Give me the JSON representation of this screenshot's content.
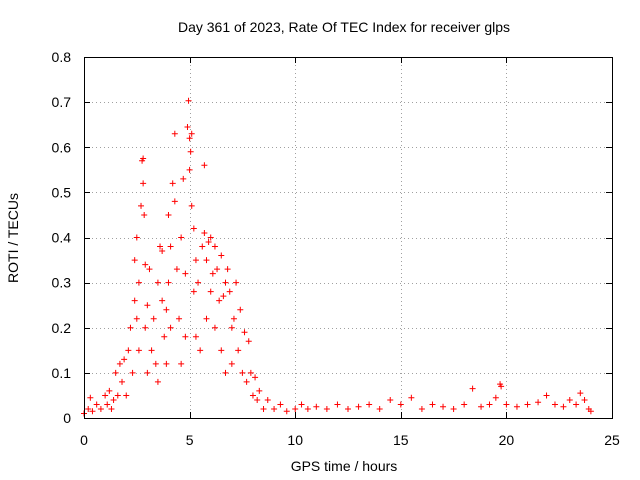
{
  "chart_data": {
    "type": "scatter",
    "title": "Day 361 of 2023, Rate Of TEC Index for receiver glps",
    "xlabel": "GPS time / hours",
    "ylabel": "ROTI / TECUs",
    "xlim": [
      0,
      25
    ],
    "ylim": [
      0,
      0.8
    ],
    "xticks": [
      0,
      5,
      10,
      15,
      20,
      25
    ],
    "xtick_labels": [
      "0",
      "5",
      "10",
      "15",
      "20",
      "25"
    ],
    "yticks": [
      0,
      0.1,
      0.2,
      0.3,
      0.4,
      0.5,
      0.6,
      0.7,
      0.8
    ],
    "ytick_labels": [
      "0",
      "0.1",
      "0.2",
      "0.3",
      "0.4",
      "0.5",
      "0.6",
      "0.7",
      "0.8"
    ],
    "grid": true,
    "marker": "+",
    "color": "#ff0000",
    "series": [
      {
        "points": [
          [
            0.0,
            0.01
          ],
          [
            0.2,
            0.02
          ],
          [
            0.3,
            0.045
          ],
          [
            0.4,
            0.015
          ],
          [
            0.6,
            0.03
          ],
          [
            0.8,
            0.02
          ],
          [
            1.0,
            0.05
          ],
          [
            1.1,
            0.03
          ],
          [
            1.2,
            0.06
          ],
          [
            1.3,
            0.02
          ],
          [
            1.4,
            0.04
          ],
          [
            1.5,
            0.1
          ],
          [
            1.6,
            0.05
          ],
          [
            1.7,
            0.12
          ],
          [
            1.8,
            0.08
          ],
          [
            1.9,
            0.13
          ],
          [
            2.0,
            0.05
          ],
          [
            2.1,
            0.15
          ],
          [
            2.2,
            0.2
          ],
          [
            2.3,
            0.1
          ],
          [
            2.4,
            0.26
          ],
          [
            2.4,
            0.35
          ],
          [
            2.5,
            0.4
          ],
          [
            2.5,
            0.22
          ],
          [
            2.6,
            0.3
          ],
          [
            2.6,
            0.15
          ],
          [
            2.7,
            0.47
          ],
          [
            2.75,
            0.57
          ],
          [
            2.8,
            0.575
          ],
          [
            2.8,
            0.52
          ],
          [
            2.85,
            0.45
          ],
          [
            2.9,
            0.34
          ],
          [
            2.9,
            0.2
          ],
          [
            3.0,
            0.25
          ],
          [
            3.0,
            0.1
          ],
          [
            3.1,
            0.33
          ],
          [
            3.2,
            0.15
          ],
          [
            3.3,
            0.22
          ],
          [
            3.4,
            0.12
          ],
          [
            3.5,
            0.3
          ],
          [
            3.5,
            0.08
          ],
          [
            3.6,
            0.38
          ],
          [
            3.7,
            0.37
          ],
          [
            3.7,
            0.26
          ],
          [
            3.8,
            0.18
          ],
          [
            3.9,
            0.24
          ],
          [
            3.9,
            0.12
          ],
          [
            4.0,
            0.45
          ],
          [
            4.0,
            0.3
          ],
          [
            4.1,
            0.38
          ],
          [
            4.1,
            0.2
          ],
          [
            4.2,
            0.52
          ],
          [
            4.3,
            0.63
          ],
          [
            4.3,
            0.48
          ],
          [
            4.4,
            0.33
          ],
          [
            4.5,
            0.22
          ],
          [
            4.6,
            0.4
          ],
          [
            4.6,
            0.12
          ],
          [
            4.7,
            0.53
          ],
          [
            4.8,
            0.32
          ],
          [
            4.8,
            0.18
          ],
          [
            4.9,
            0.645
          ],
          [
            4.95,
            0.703
          ],
          [
            5.0,
            0.62
          ],
          [
            5.0,
            0.55
          ],
          [
            5.05,
            0.59
          ],
          [
            5.1,
            0.63
          ],
          [
            5.1,
            0.47
          ],
          [
            5.2,
            0.42
          ],
          [
            5.2,
            0.28
          ],
          [
            5.3,
            0.35
          ],
          [
            5.3,
            0.18
          ],
          [
            5.4,
            0.3
          ],
          [
            5.5,
            0.15
          ],
          [
            5.6,
            0.38
          ],
          [
            5.7,
            0.56
          ],
          [
            5.7,
            0.41
          ],
          [
            5.8,
            0.35
          ],
          [
            5.8,
            0.22
          ],
          [
            5.9,
            0.39
          ],
          [
            6.0,
            0.4
          ],
          [
            6.0,
            0.28
          ],
          [
            6.1,
            0.32
          ],
          [
            6.2,
            0.38
          ],
          [
            6.2,
            0.2
          ],
          [
            6.3,
            0.33
          ],
          [
            6.4,
            0.26
          ],
          [
            6.5,
            0.36
          ],
          [
            6.5,
            0.15
          ],
          [
            6.6,
            0.27
          ],
          [
            6.7,
            0.3
          ],
          [
            6.7,
            0.1
          ],
          [
            6.8,
            0.33
          ],
          [
            6.9,
            0.28
          ],
          [
            7.0,
            0.2
          ],
          [
            7.0,
            0.12
          ],
          [
            7.1,
            0.22
          ],
          [
            7.2,
            0.3
          ],
          [
            7.3,
            0.15
          ],
          [
            7.4,
            0.24
          ],
          [
            7.5,
            0.1
          ],
          [
            7.6,
            0.19
          ],
          [
            7.7,
            0.08
          ],
          [
            7.8,
            0.17
          ],
          [
            7.9,
            0.1
          ],
          [
            8.0,
            0.05
          ],
          [
            8.1,
            0.09
          ],
          [
            8.2,
            0.04
          ],
          [
            8.3,
            0.06
          ],
          [
            8.5,
            0.02
          ],
          [
            8.7,
            0.04
          ],
          [
            9.0,
            0.02
          ],
          [
            9.3,
            0.03
          ],
          [
            9.6,
            0.015
          ],
          [
            10.0,
            0.02
          ],
          [
            10.3,
            0.03
          ],
          [
            10.6,
            0.02
          ],
          [
            11.0,
            0.025
          ],
          [
            11.5,
            0.02
          ],
          [
            12.0,
            0.03
          ],
          [
            12.5,
            0.02
          ],
          [
            13.0,
            0.025
          ],
          [
            13.5,
            0.03
          ],
          [
            14.0,
            0.02
          ],
          [
            14.5,
            0.04
          ],
          [
            15.0,
            0.03
          ],
          [
            15.5,
            0.045
          ],
          [
            16.0,
            0.02
          ],
          [
            16.5,
            0.03
          ],
          [
            17.0,
            0.025
          ],
          [
            17.5,
            0.02
          ],
          [
            18.0,
            0.03
          ],
          [
            18.4,
            0.065
          ],
          [
            18.8,
            0.025
          ],
          [
            19.2,
            0.03
          ],
          [
            19.5,
            0.045
          ],
          [
            19.7,
            0.075
          ],
          [
            19.75,
            0.07
          ],
          [
            20.0,
            0.03
          ],
          [
            20.5,
            0.025
          ],
          [
            21.0,
            0.03
          ],
          [
            21.5,
            0.035
          ],
          [
            21.9,
            0.05
          ],
          [
            22.3,
            0.03
          ],
          [
            22.7,
            0.025
          ],
          [
            23.0,
            0.04
          ],
          [
            23.3,
            0.03
          ],
          [
            23.5,
            0.055
          ],
          [
            23.7,
            0.04
          ],
          [
            23.9,
            0.02
          ],
          [
            24.0,
            0.015
          ]
        ]
      }
    ]
  }
}
